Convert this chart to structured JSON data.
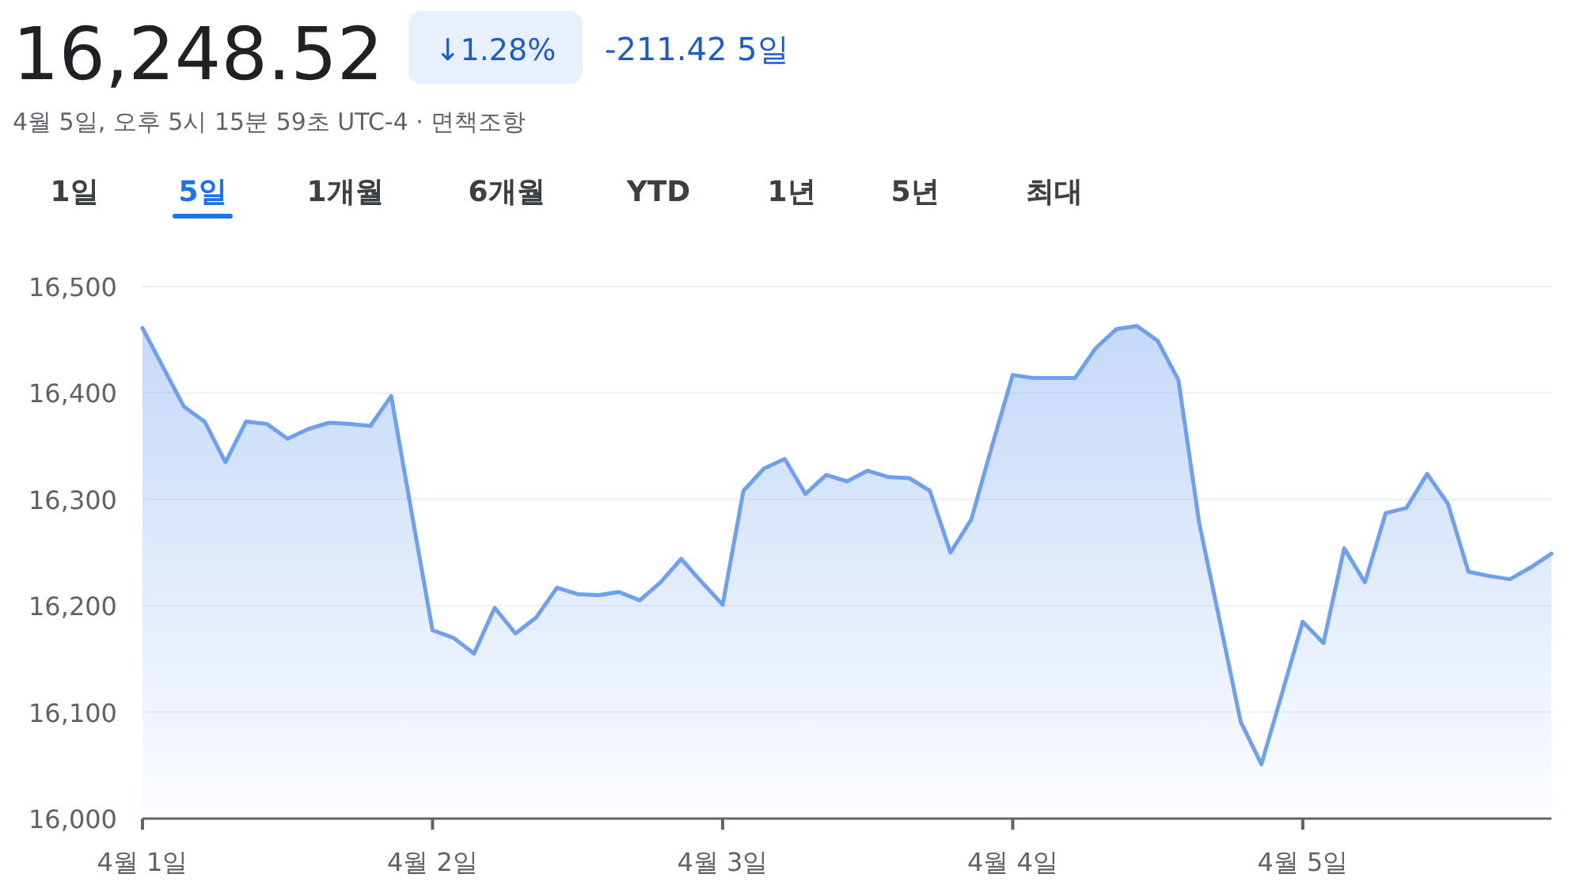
{
  "chart_data": {
    "type": "area",
    "title": "16,248.52",
    "subtitle": "4월 5일, 오후 5시 15분 59초 UTC-4 · 면책조항",
    "annotations": [
      "↓1.28%",
      "-211.42 5일",
      "1일",
      "5일",
      "1개월",
      "6개월",
      "YTD",
      "1년",
      "5년",
      "최대"
    ],
    "categories": [
      "4월 1일",
      null,
      null,
      null,
      null,
      null,
      null,
      null,
      null,
      null,
      null,
      null,
      null,
      null,
      "4월 2일",
      null,
      null,
      null,
      null,
      null,
      null,
      null,
      null,
      null,
      null,
      null,
      null,
      null,
      "4월 3일",
      null,
      null,
      null,
      null,
      null,
      null,
      null,
      null,
      null,
      null,
      null,
      null,
      null,
      "4월 4일",
      null,
      null,
      null,
      null,
      null,
      null,
      null,
      null,
      null,
      null,
      null,
      null,
      null,
      "4월 5일",
      null,
      null,
      null,
      null,
      null,
      null,
      null,
      null,
      null,
      null,
      null,
      null
    ],
    "series": [
      {
        "color": "#6ea0f0",
        "values": [
          16461,
          16424,
          16387,
          16373,
          16335,
          16373,
          16371,
          16357,
          16366,
          16372,
          16371,
          16369,
          16397,
          16287,
          16177,
          16170,
          16155,
          16198,
          16174,
          16189,
          16217,
          16211,
          16210,
          16213,
          16205,
          16222,
          16244,
          16222,
          16201,
          16308,
          16329,
          16338,
          16305,
          16323,
          16317,
          16327,
          16321,
          16320,
          16308,
          16250,
          16281,
          16350,
          16417,
          16414,
          16414,
          16414,
          16442,
          16460,
          16463,
          16449,
          16412,
          16278,
          16185,
          16091,
          16051,
          16118,
          16185,
          16165,
          16254,
          16222,
          16287,
          16292,
          16324,
          16296,
          16232,
          16228,
          16225,
          16236,
          16249
        ]
      }
    ],
    "ylim": [
      16000,
      16500
    ],
    "yticks": [
      {
        "value": 16000,
        "label": "16,000"
      },
      {
        "value": 16100,
        "label": "16,100"
      },
      {
        "value": 16200,
        "label": "16,200"
      },
      {
        "value": 16300,
        "label": "16,300"
      },
      {
        "value": 16400,
        "label": "16,400"
      },
      {
        "value": 16500,
        "label": "16,500"
      }
    ],
    "grid": "y"
  }
}
